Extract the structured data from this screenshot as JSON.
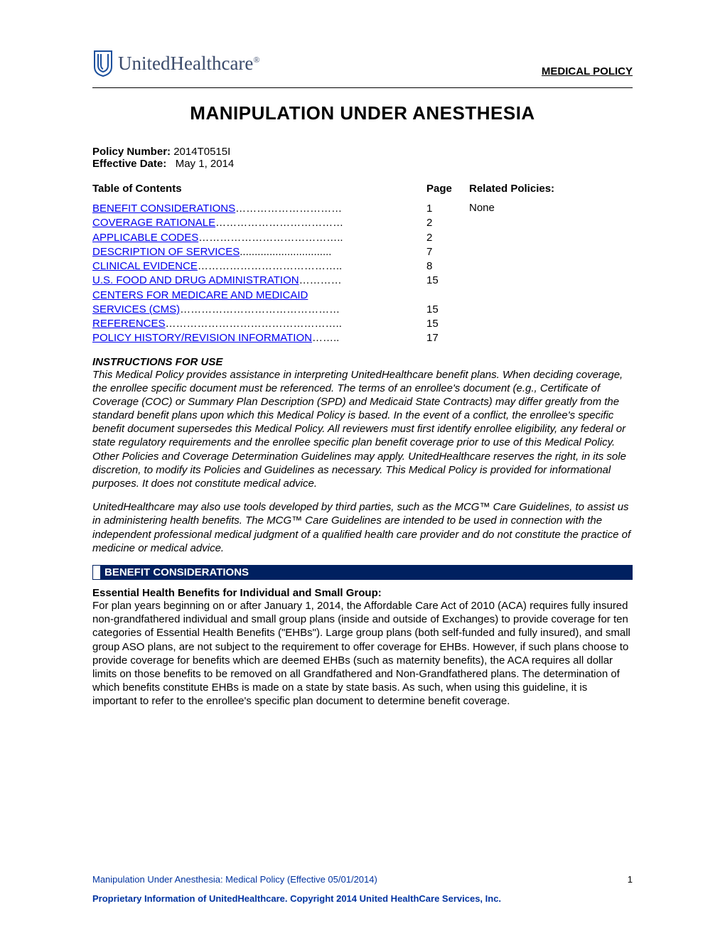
{
  "brand": {
    "name": "UnitedHealthcare",
    "logo_color": "#1b4f9c"
  },
  "header": {
    "policy_type": "MEDICAL POLICY",
    "title": "MANIPULATION UNDER ANESTHESIA"
  },
  "meta": {
    "policy_number_label": "Policy Number:",
    "policy_number": "2014T0515I",
    "effective_date_label": "Effective Date:",
    "effective_date": "May 1, 2014"
  },
  "toc": {
    "heading": "Table of Contents",
    "page_heading": "Page",
    "related_heading": "Related Policies:",
    "related_value": "None",
    "items": [
      {
        "label": "BENEFIT CONSIDERATIONS",
        "dots": "…………………………",
        "page": "1"
      },
      {
        "label": "COVERAGE RATIONALE",
        "dots": "………………………………",
        "page": "2"
      },
      {
        "label": "APPLICABLE CODES",
        "dots": "…………………………………..",
        "page": "2"
      },
      {
        "label": "DESCRIPTION OF SERVICES",
        "dots": "...............................",
        "page": "7"
      },
      {
        "label": "CLINICAL EVIDENCE",
        "dots": "…………………………………..",
        "page": "8"
      },
      {
        "label": "U.S. FOOD AND DRUG ADMINISTRATION",
        "dots": "…………",
        "page": "15"
      },
      {
        "label": "CENTERS FOR MEDICARE AND MEDICAID SERVICES (CMS)",
        "dots": "………………………………………",
        "page": "15",
        "wrap": true
      },
      {
        "label": "REFERENCES",
        "dots": "…………………………………………..",
        "page": "15"
      },
      {
        "label": "POLICY HISTORY/REVISION INFORMATION",
        "dots": "……..",
        "page": "17"
      }
    ]
  },
  "instructions": {
    "heading": "INSTRUCTIONS FOR USE",
    "p1": "This Medical Policy provides assistance in interpreting UnitedHealthcare benefit plans. When deciding coverage, the enrollee specific document must be referenced. The terms of an enrollee's document (e.g., Certificate of Coverage (COC) or Summary Plan Description (SPD) and Medicaid State Contracts) may differ greatly from the standard benefit plans upon which this Medical Policy is based. In the event of a conflict, the enrollee's specific benefit document supersedes this Medical Policy. All reviewers must first identify enrollee eligibility, any federal or state regulatory requirements and the enrollee specific plan benefit coverage prior to use of this Medical Policy. Other Policies and Coverage Determination Guidelines may apply. UnitedHealthcare reserves the right, in its sole discretion, to modify its Policies and Guidelines as necessary. This Medical Policy is provided for informational purposes. It does not constitute medical advice.",
    "p2": "UnitedHealthcare may also use tools developed by third parties, such as the MCG™ Care Guidelines, to assist us in administering health benefits. The MCG™ Care Guidelines are intended to be used in connection with the independent professional medical judgment of a qualified health care provider and do not constitute the practice of medicine or medical advice."
  },
  "section1": {
    "bar": "BENEFIT CONSIDERATIONS",
    "subheading": "Essential Health Benefits for Individual and Small Group:",
    "body": "For plan years beginning on or after January 1, 2014, the Affordable Care Act of 2010 (ACA) requires fully insured non-grandfathered individual and small group plans (inside and outside of Exchanges) to provide coverage for ten categories of Essential Health Benefits (\"EHBs\").  Large group plans (both self-funded and fully insured), and small group ASO plans, are not subject to the requirement to offer coverage for EHBs.  However, if such plans choose to provide coverage for benefits which are deemed EHBs (such as maternity benefits), the ACA requires all dollar limits on those benefits to be removed on all Grandfathered and Non-Grandfathered plans. The determination of which benefits constitute EHBs is made on a state by state basis.  As such, when using this guideline, it is important to refer to the enrollee's specific plan document to determine benefit coverage."
  },
  "footer": {
    "line1": "Manipulation Under Anesthesia: Medical Policy (Effective 05/01/2014)",
    "pagenum": "1",
    "line2": "Proprietary Information of UnitedHealthcare. Copyright 2014 United HealthCare Services, Inc."
  },
  "colors": {
    "link": "#0000ee",
    "section_bar_bg": "#002060",
    "footer_text": "#0033a0"
  }
}
